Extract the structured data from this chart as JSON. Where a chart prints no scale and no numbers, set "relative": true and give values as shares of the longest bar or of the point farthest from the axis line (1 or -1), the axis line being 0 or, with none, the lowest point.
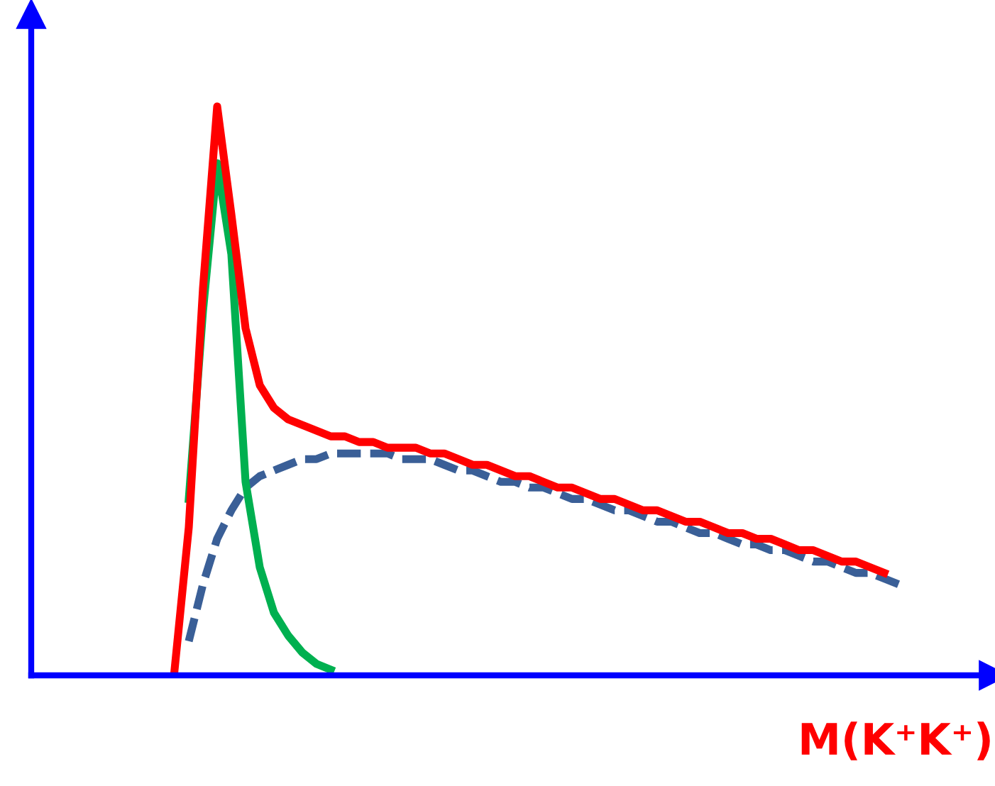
{
  "chart_data": {
    "type": "line",
    "relative": true,
    "xlabel": "M(K⁺K⁺)",
    "categories": [
      null,
      null,
      null,
      null,
      null,
      null,
      null,
      null,
      null,
      null,
      null,
      null,
      null,
      null,
      null,
      null,
      null,
      null,
      null,
      null,
      null,
      null,
      null,
      null,
      null,
      null,
      null,
      null,
      null,
      null,
      null,
      null,
      null,
      null,
      null,
      null,
      null,
      null,
      null,
      null,
      null,
      null,
      null,
      null,
      null,
      null,
      null,
      null,
      null,
      null,
      null,
      null
    ],
    "grid": false,
    "legend": false,
    "marker": "none",
    "series": [
      {
        "color": "#3a5f97",
        "line_style": "dashed",
        "values": [
          null,
          0.06,
          0.16,
          0.24,
          0.29,
          0.33,
          0.35,
          0.36,
          0.37,
          0.38,
          0.38,
          0.39,
          0.39,
          0.39,
          0.39,
          0.39,
          0.38,
          0.38,
          0.38,
          0.37,
          0.36,
          0.36,
          0.35,
          0.34,
          0.34,
          0.33,
          0.33,
          0.32,
          0.31,
          0.31,
          0.3,
          0.29,
          0.29,
          0.28,
          0.27,
          0.27,
          0.26,
          0.25,
          0.25,
          0.24,
          0.23,
          0.23,
          0.22,
          0.22,
          0.21,
          0.2,
          0.2,
          0.19,
          0.18,
          0.18,
          0.17,
          0.16
        ]
      },
      {
        "color": "#00b050",
        "line_style": "solid",
        "values": [
          null,
          0.31,
          0.64,
          0.9,
          0.74,
          0.34,
          0.19,
          0.11,
          0.07,
          0.04,
          0.02,
          0.01,
          null,
          null,
          null,
          null,
          null,
          null,
          null,
          null,
          null,
          null,
          null,
          null,
          null,
          null,
          null,
          null,
          null,
          null,
          null,
          null,
          null,
          null,
          null,
          null,
          null,
          null,
          null,
          null,
          null,
          null,
          null,
          null,
          null,
          null,
          null,
          null,
          null,
          null,
          null,
          null
        ]
      },
      {
        "color": "#ff0000",
        "line_style": "solid",
        "values": [
          0.01,
          0.26,
          0.68,
          1.0,
          0.81,
          0.61,
          0.51,
          0.47,
          0.45,
          0.44,
          0.43,
          0.42,
          0.42,
          0.41,
          0.41,
          0.4,
          0.4,
          0.4,
          0.39,
          0.39,
          0.38,
          0.37,
          0.37,
          0.36,
          0.35,
          0.35,
          0.34,
          0.33,
          0.33,
          0.32,
          0.31,
          0.31,
          0.3,
          0.29,
          0.29,
          0.28,
          0.27,
          0.27,
          0.26,
          0.25,
          0.25,
          0.24,
          0.24,
          0.23,
          0.22,
          0.22,
          0.21,
          0.2,
          0.2,
          0.19,
          0.18,
          null
        ]
      }
    ]
  }
}
